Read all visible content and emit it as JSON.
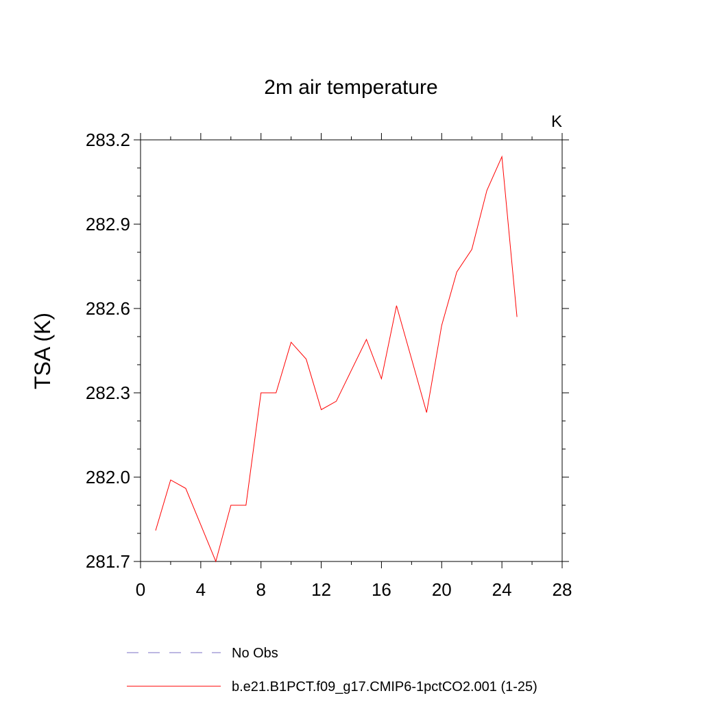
{
  "chart_data": {
    "type": "line",
    "title": "2m air temperature",
    "units_label": "K",
    "xlabel": "",
    "ylabel": "TSA  (K)",
    "xlim": [
      0,
      28
    ],
    "ylim": [
      281.7,
      283.2
    ],
    "xticks": [
      0,
      4,
      8,
      12,
      16,
      20,
      24,
      28
    ],
    "yticks": [
      281.7,
      282.0,
      282.3,
      282.6,
      282.9,
      283.2
    ],
    "ytick_labels": [
      "281.7",
      "282.0",
      "282.3",
      "282.6",
      "282.9",
      "283.2"
    ],
    "grid": false,
    "legend_position": "bottom",
    "series": [
      {
        "name": "No Obs",
        "color": "#7b6fc4",
        "dash": "dashed",
        "x": [],
        "y": []
      },
      {
        "name": "b.e21.B1PCT.f09_g17.CMIP6-1pctCO2.001 (1-25)",
        "color": "#ff0000",
        "dash": "solid",
        "x": [
          1,
          2,
          3,
          4,
          5,
          6,
          7,
          8,
          9,
          10,
          11,
          12,
          13,
          14,
          15,
          16,
          17,
          18,
          19,
          20,
          21,
          22,
          23,
          24,
          25
        ],
        "y": [
          281.81,
          281.99,
          281.96,
          281.83,
          281.7,
          281.9,
          281.9,
          282.3,
          282.3,
          282.48,
          282.42,
          282.24,
          282.27,
          282.38,
          282.49,
          282.35,
          282.61,
          282.42,
          282.23,
          282.54,
          282.73,
          282.81,
          283.02,
          283.14,
          282.57
        ]
      }
    ]
  }
}
